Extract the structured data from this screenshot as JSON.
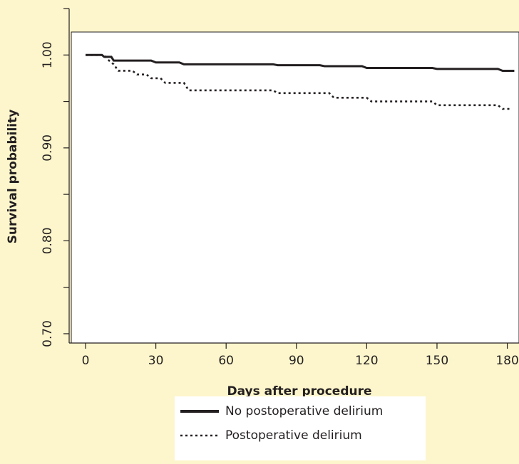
{
  "chart_data": {
    "type": "line",
    "step": true,
    "x_label": "Days after procedure",
    "y_label": "Survival probability",
    "series": [
      {
        "name": "No postoperative delirium",
        "color": "#231f20",
        "style": "solid",
        "x": [
          0,
          7,
          8,
          11,
          12,
          28,
          30,
          40,
          42,
          80,
          82,
          100,
          102,
          118,
          120,
          148,
          150,
          176,
          178,
          183
        ],
        "values": [
          1,
          1,
          0.998,
          0.998,
          0.994,
          0.994,
          0.992,
          0.992,
          0.99,
          0.99,
          0.989,
          0.989,
          0.988,
          0.988,
          0.986,
          0.986,
          0.985,
          0.985,
          0.983,
          0.983
        ]
      },
      {
        "name": "Postoperative delirium",
        "color": "#231f20",
        "style": "dotted",
        "x": [
          0,
          8,
          10,
          12,
          14,
          20,
          22,
          26,
          28,
          32,
          34,
          42,
          44,
          80,
          82,
          104,
          106,
          120,
          122,
          148,
          150,
          176,
          178,
          182
        ],
        "values": [
          1,
          1,
          0.994,
          0.99,
          0.983,
          0.983,
          0.979,
          0.979,
          0.975,
          0.975,
          0.97,
          0.97,
          0.962,
          0.962,
          0.959,
          0.959,
          0.954,
          0.954,
          0.95,
          0.95,
          0.946,
          0.946,
          0.942,
          0.942
        ]
      }
    ],
    "xlim": [
      -7,
      185
    ],
    "xticks": [
      0,
      30,
      60,
      90,
      120,
      150,
      180
    ],
    "ylim": [
      0.69,
      1.05
    ],
    "yticks": [
      {
        "value": 0.7,
        "label": "0.70"
      },
      {
        "value": 0.8,
        "label": "0.80"
      },
      {
        "value": 0.9,
        "label": "0.90"
      },
      {
        "value": 1.0,
        "label": "1.00"
      }
    ],
    "yminor": [
      0.75,
      0.85,
      0.95,
      1.05
    ],
    "legend": "bottom"
  }
}
